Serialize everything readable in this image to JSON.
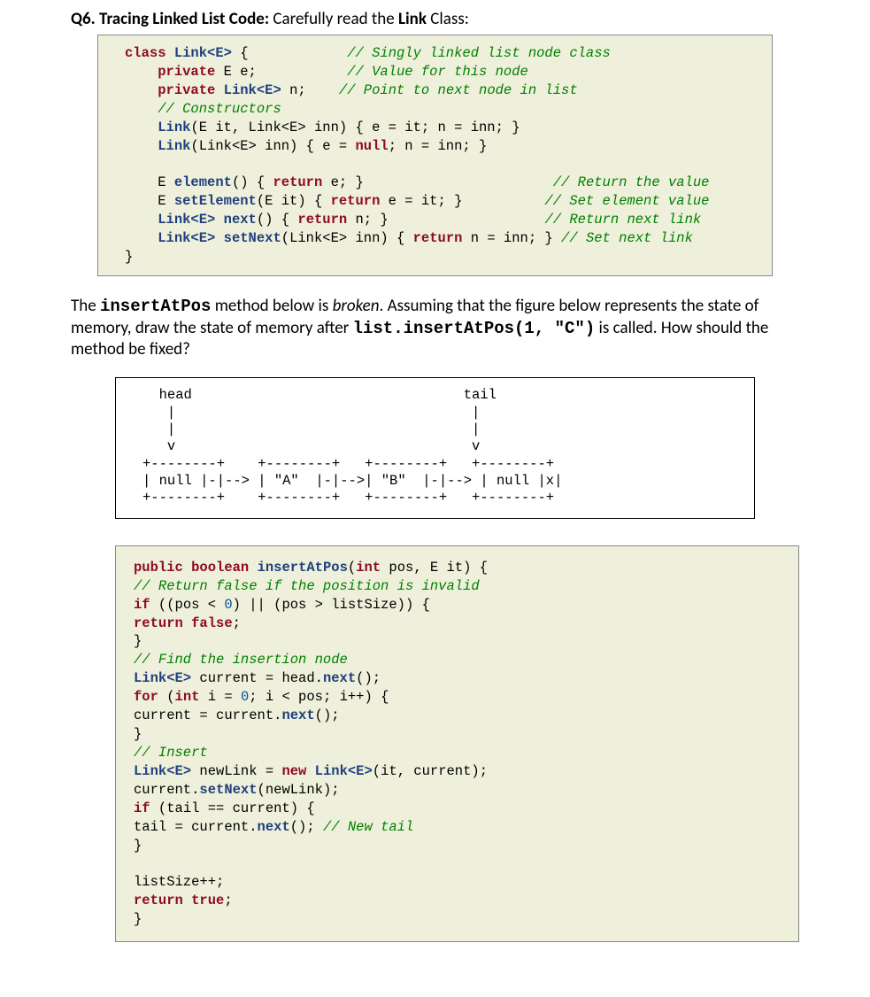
{
  "question": {
    "label": "Q6. Tracing Linked List Code:",
    "instruction_prefix": " Carefully read the ",
    "instruction_bold": "Link",
    "instruction_suffix": " Class:"
  },
  "code1": {
    "colors": {
      "keyword": "#8e0b25",
      "class": "#1f407c",
      "comment": "#008000",
      "literal": "#004fa0",
      "background": "#eff0db",
      "border": "#888888"
    },
    "t": {
      "class": "class",
      "LinkE": "Link<E>",
      "brace_open": " {            ",
      "c1": "// Singly linked list node class",
      "ind": "    ",
      "private1": "private",
      "E_e": " E e;           ",
      "c2": "// Value for this node",
      "private2": "private",
      "LinkE_n": " n;    ",
      "c3": "// Point to next node in list",
      "c4": "// Constructors",
      "ctor1": "(E it, Link<E> inn) { e = it; n = inn; }",
      "Link": "Link",
      "ctor2_p1": "(Link<E> inn) { e = ",
      "null": "null",
      "ctor2_p2": "; n = inn; }",
      "empty": "",
      "element": "element",
      "el_body": "() { ",
      "return": "return",
      "e_semi": " e; }                       ",
      "c5": "// Return the value",
      "setElement": "setElement",
      "setEl_body": "(E it) { ",
      "e_it": " e = it; }          ",
      "c6": "// Set element value",
      "next": "next",
      "next_body": "() { ",
      "n_semi": " n; }                   ",
      "c7": "// Return next link",
      "setNext": "setNext",
      "setNext_body": "(Link<E> inn) { ",
      "n_inn": " n = inn; } ",
      "c8": "// Set next link",
      "brace_close": "}",
      "E_sp": "E ",
      "sp": " "
    }
  },
  "paragraph": {
    "p1": "The ",
    "m1": "insertAtPos",
    "p2": " method below is ",
    "i1": "broken",
    "p3": ". Assuming that the figure below represents the state of memory, draw the state of memory after ",
    "m2": "list.insertAtPos(1, \"C\")",
    "p4": " is called. How should the method be fixed?"
  },
  "diagram": {
    "line1": "  head                                 tail",
    "line2": "   |                                    |",
    "line3": "   |                                    |",
    "line4": "   v                                    v",
    "line5": "+--------+    +--------+   +--------+   +--------+",
    "line6": "| null |-|--> | \"A\"  |-|-->| \"B\"  |-|--> | null |x|",
    "line7": "+--------+    +--------+   +--------+   +--------+"
  },
  "code2": {
    "t": {
      "public": "public",
      "boolean": "boolean",
      "insertAtPos": "insertAtPos",
      "sig": "(",
      "int": "int",
      "sig2": " pos, E it) {",
      "c1": "// Return false if the position is invalid",
      "if": "if",
      "cond1": " ((pos < ",
      "zero": "0",
      "cond2": ") || (pos > listSize)) {",
      "return": "return",
      "false": "false",
      "semi": ";",
      "brace": "}",
      "c2": "// Find the insertion node",
      "LinkE": "Link<E>",
      "cur_head": " current = head.",
      "next": "next",
      "paren": "();",
      "for": "for",
      "for1": " (",
      "for2": " i = ",
      "for3": "; i < pos; i++) {",
      "cur_cur": "current = current.",
      "c3": "// Insert",
      "newlink1": " newLink = ",
      "new": "new",
      "newlink2": "(it, current);",
      "set1": "current.",
      "setNext": "setNext",
      "set2": "(newLink);",
      "if2": " (tail == current) {",
      "tail1": "tail = current.",
      "tail2": "(); ",
      "c4": "// New tail",
      "lsz": "listSize++;",
      "true": "true",
      "sp": " "
    }
  }
}
